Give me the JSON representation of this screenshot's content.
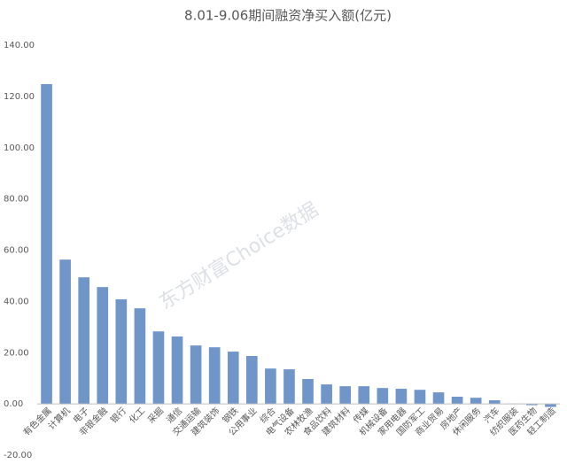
{
  "chart_data": {
    "type": "bar",
    "title": "8.01-9.06期间融资净买入额(亿元)",
    "watermark": "东方财富Choice数据",
    "categories": [
      "有色金属",
      "计算机",
      "电子",
      "非银金融",
      "银行",
      "化工",
      "采掘",
      "通信",
      "交通运输",
      "建筑装饰",
      "钢铁",
      "公用事业",
      "综合",
      "电气设备",
      "农林牧渔",
      "食品饮料",
      "建筑材料",
      "传媒",
      "机械设备",
      "家用电器",
      "国防军工",
      "商业贸易",
      "房地产",
      "休闲服务",
      "汽车",
      "纺织服装",
      "医药生物",
      "轻工制造"
    ],
    "values": [
      124.8,
      56.3,
      49.4,
      45.6,
      40.8,
      37.3,
      28.3,
      26.3,
      22.8,
      22.1,
      20.4,
      18.7,
      13.8,
      13.5,
      9.7,
      7.6,
      6.9,
      6.9,
      6.2,
      5.9,
      5.5,
      4.5,
      2.8,
      2.4,
      1.4,
      0.1,
      -0.5,
      -1.2
    ],
    "color": "#6f95c9",
    "ylim": [
      -20,
      140
    ],
    "yticks": [
      {
        "value": -20,
        "label": "-20.00"
      },
      {
        "value": 0,
        "label": "0.00"
      },
      {
        "value": 20,
        "label": "20.00"
      },
      {
        "value": 40,
        "label": "40.00"
      },
      {
        "value": 60,
        "label": "60.00"
      },
      {
        "value": 80,
        "label": "80.00"
      },
      {
        "value": 100,
        "label": "100.00"
      },
      {
        "value": 120,
        "label": "120.00"
      },
      {
        "value": 140,
        "label": "140.00"
      }
    ],
    "grid": false
  }
}
